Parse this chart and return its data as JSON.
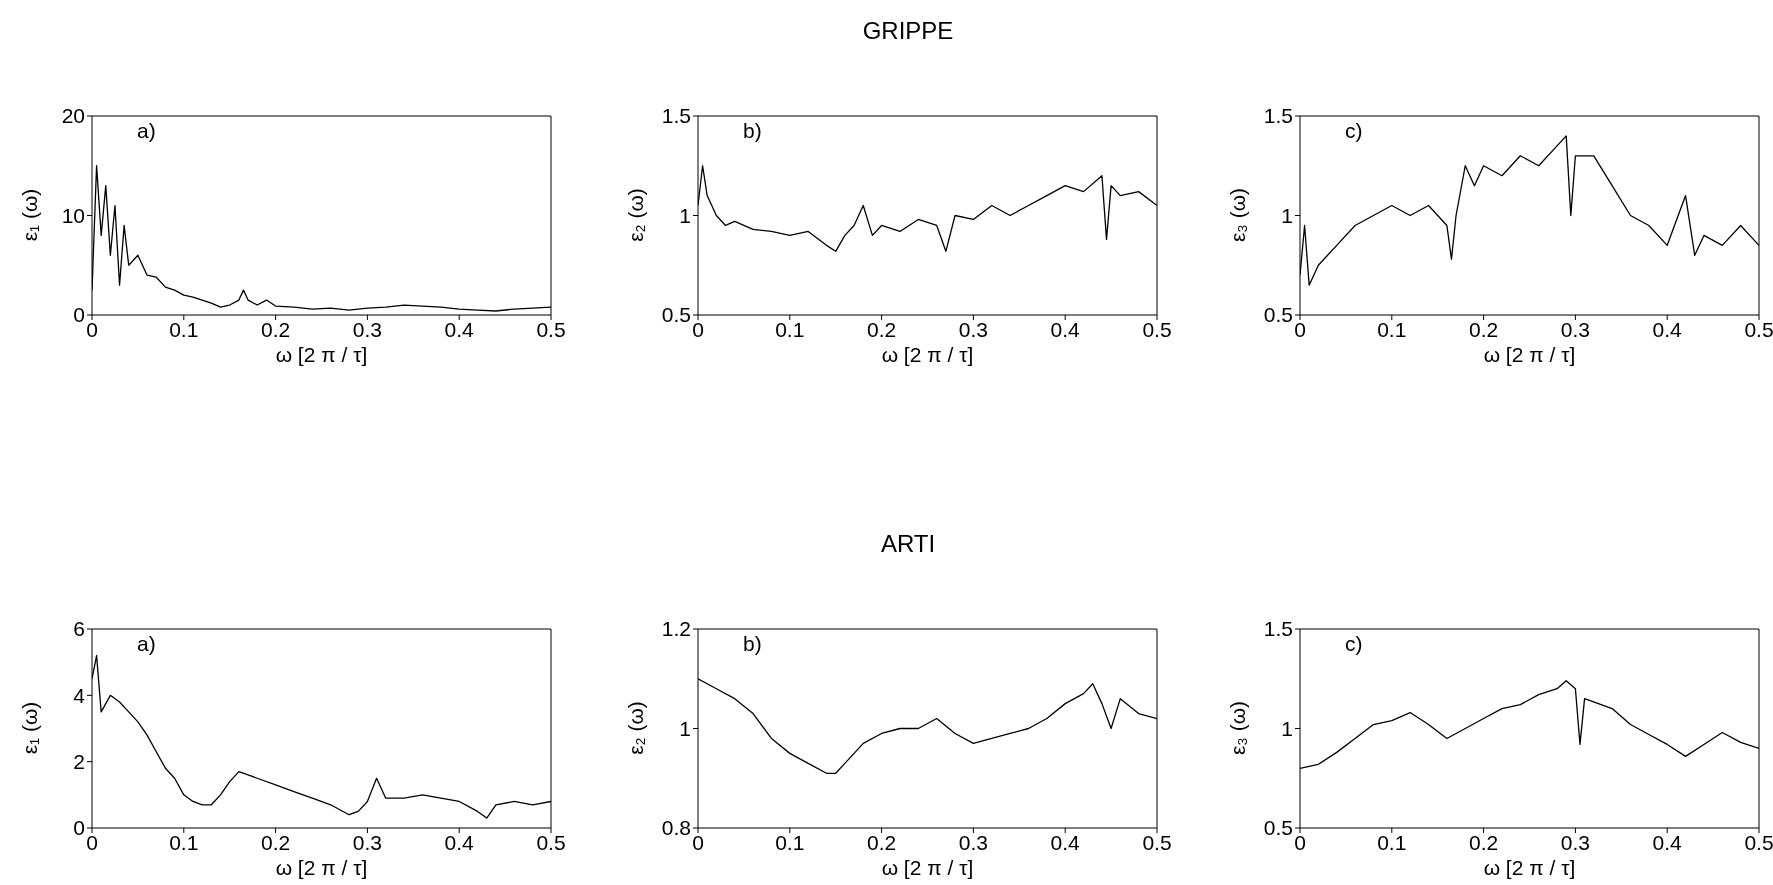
{
  "chart_data": [
    {
      "type": "line",
      "xlabel": "ω [2 π / τ]",
      "ylabel": "ε₁ (ω)",
      "annotations": [
        "a)"
      ],
      "xlim": [
        0,
        0.5
      ],
      "xticks": [
        0,
        0.1,
        0.2,
        0.3,
        0.4,
        0.5
      ],
      "ylim": [
        0,
        20
      ],
      "yticks": [
        0,
        10,
        20
      ],
      "color": "#000000",
      "x": [
        0,
        0.005,
        0.01,
        0.015,
        0.02,
        0.025,
        0.03,
        0.035,
        0.04,
        0.05,
        0.06,
        0.07,
        0.08,
        0.09,
        0.1,
        0.11,
        0.12,
        0.13,
        0.14,
        0.15,
        0.16,
        0.165,
        0.17,
        0.18,
        0.19,
        0.2,
        0.22,
        0.24,
        0.26,
        0.28,
        0.3,
        0.32,
        0.34,
        0.36,
        0.38,
        0.4,
        0.42,
        0.44,
        0.46,
        0.48,
        0.5
      ],
      "values": [
        2.5,
        15,
        8,
        13,
        6,
        11,
        3,
        9,
        5,
        6,
        4,
        3.8,
        2.8,
        2.5,
        2,
        1.8,
        1.5,
        1.2,
        0.8,
        1,
        1.5,
        2.5,
        1.5,
        1,
        1.5,
        0.9,
        0.8,
        0.6,
        0.7,
        0.5,
        0.7,
        0.8,
        1,
        0.9,
        0.8,
        0.6,
        0.5,
        0.4,
        0.6,
        0.7,
        0.8
      ]
    },
    {
      "type": "line",
      "title": "GRIPPE",
      "xlabel": "ω [2 π / τ]",
      "ylabel": "ε₂ (ω)",
      "annotations": [
        "b)"
      ],
      "xlim": [
        0,
        0.5
      ],
      "xticks": [
        0,
        0.1,
        0.2,
        0.3,
        0.4,
        0.5
      ],
      "ylim": [
        0.5,
        1.5
      ],
      "yticks": [
        0.5,
        1,
        1.5
      ],
      "color": "#000000",
      "x": [
        0,
        0.005,
        0.01,
        0.02,
        0.03,
        0.04,
        0.05,
        0.06,
        0.08,
        0.1,
        0.12,
        0.14,
        0.15,
        0.16,
        0.17,
        0.18,
        0.19,
        0.2,
        0.22,
        0.24,
        0.26,
        0.27,
        0.28,
        0.3,
        0.32,
        0.34,
        0.36,
        0.38,
        0.4,
        0.42,
        0.44,
        0.445,
        0.45,
        0.46,
        0.48,
        0.5
      ],
      "values": [
        1.05,
        1.25,
        1.1,
        1,
        0.95,
        0.97,
        0.95,
        0.93,
        0.92,
        0.9,
        0.92,
        0.85,
        0.82,
        0.9,
        0.95,
        1.05,
        0.9,
        0.95,
        0.92,
        0.98,
        0.95,
        0.82,
        1,
        0.98,
        1.05,
        1,
        1.05,
        1.1,
        1.15,
        1.12,
        1.2,
        0.88,
        1.15,
        1.1,
        1.12,
        1.05
      ]
    },
    {
      "type": "line",
      "xlabel": "ω [2 π / τ]",
      "ylabel": "ε₃ (ω)",
      "annotations": [
        "c)"
      ],
      "xlim": [
        0,
        0.5
      ],
      "xticks": [
        0,
        0.1,
        0.2,
        0.3,
        0.4,
        0.5
      ],
      "ylim": [
        0.5,
        1.5
      ],
      "yticks": [
        0.5,
        1,
        1.5
      ],
      "color": "#000000",
      "x": [
        0,
        0.005,
        0.01,
        0.02,
        0.03,
        0.04,
        0.06,
        0.08,
        0.1,
        0.12,
        0.14,
        0.16,
        0.165,
        0.17,
        0.18,
        0.19,
        0.2,
        0.22,
        0.24,
        0.26,
        0.28,
        0.29,
        0.295,
        0.3,
        0.32,
        0.34,
        0.36,
        0.38,
        0.4,
        0.42,
        0.43,
        0.44,
        0.46,
        0.48,
        0.5
      ],
      "values": [
        0.7,
        0.95,
        0.65,
        0.75,
        0.8,
        0.85,
        0.95,
        1,
        1.05,
        1,
        1.05,
        0.95,
        0.78,
        1,
        1.25,
        1.15,
        1.25,
        1.2,
        1.3,
        1.25,
        1.35,
        1.4,
        1,
        1.3,
        1.3,
        1.15,
        1,
        0.95,
        0.85,
        1.1,
        0.8,
        0.9,
        0.85,
        0.95,
        0.85
      ]
    },
    {
      "type": "line",
      "xlabel": "ω [2 π / τ]",
      "ylabel": "ε₁ (ω)",
      "annotations": [
        "a)"
      ],
      "xlim": [
        0,
        0.5
      ],
      "xticks": [
        0,
        0.1,
        0.2,
        0.3,
        0.4,
        0.5
      ],
      "ylim": [
        0,
        6
      ],
      "yticks": [
        0,
        2,
        4,
        6
      ],
      "color": "#000000",
      "x": [
        0,
        0.005,
        0.01,
        0.02,
        0.03,
        0.04,
        0.05,
        0.06,
        0.07,
        0.08,
        0.09,
        0.1,
        0.11,
        0.12,
        0.13,
        0.14,
        0.15,
        0.16,
        0.17,
        0.18,
        0.2,
        0.22,
        0.24,
        0.26,
        0.28,
        0.29,
        0.3,
        0.31,
        0.32,
        0.34,
        0.36,
        0.38,
        0.4,
        0.42,
        0.43,
        0.44,
        0.46,
        0.48,
        0.5
      ],
      "values": [
        4.5,
        5.2,
        3.5,
        4,
        3.8,
        3.5,
        3.2,
        2.8,
        2.3,
        1.8,
        1.5,
        1,
        0.8,
        0.7,
        0.7,
        1,
        1.4,
        1.7,
        1.6,
        1.5,
        1.3,
        1.1,
        0.9,
        0.7,
        0.4,
        0.5,
        0.8,
        1.5,
        0.9,
        0.9,
        1,
        0.9,
        0.8,
        0.5,
        0.3,
        0.7,
        0.8,
        0.7,
        0.8
      ]
    },
    {
      "type": "line",
      "title": "ARTI",
      "xlabel": "ω [2 π / τ]",
      "ylabel": "ε₂ (ω)",
      "annotations": [
        "b)"
      ],
      "xlim": [
        0,
        0.5
      ],
      "xticks": [
        0,
        0.1,
        0.2,
        0.3,
        0.4,
        0.5
      ],
      "ylim": [
        0.8,
        1.2
      ],
      "yticks": [
        0.8,
        1,
        1.2
      ],
      "color": "#000000",
      "x": [
        0,
        0.02,
        0.04,
        0.06,
        0.08,
        0.1,
        0.12,
        0.14,
        0.15,
        0.16,
        0.18,
        0.2,
        0.22,
        0.24,
        0.26,
        0.28,
        0.3,
        0.32,
        0.34,
        0.36,
        0.38,
        0.4,
        0.42,
        0.43,
        0.44,
        0.45,
        0.46,
        0.48,
        0.5
      ],
      "values": [
        1.1,
        1.08,
        1.06,
        1.03,
        0.98,
        0.95,
        0.93,
        0.91,
        0.91,
        0.93,
        0.97,
        0.99,
        1,
        1,
        1.02,
        0.99,
        0.97,
        0.98,
        0.99,
        1,
        1.02,
        1.05,
        1.07,
        1.09,
        1.05,
        1,
        1.06,
        1.03,
        1.02
      ]
    },
    {
      "type": "line",
      "xlabel": "ω [2 π / τ]",
      "ylabel": "ε₃ (ω)",
      "annotations": [
        "c)"
      ],
      "xlim": [
        0,
        0.5
      ],
      "xticks": [
        0,
        0.1,
        0.2,
        0.3,
        0.4,
        0.5
      ],
      "ylim": [
        0.5,
        1.5
      ],
      "yticks": [
        0.5,
        1,
        1.5
      ],
      "color": "#000000",
      "x": [
        0,
        0.02,
        0.04,
        0.06,
        0.08,
        0.1,
        0.12,
        0.14,
        0.16,
        0.18,
        0.2,
        0.22,
        0.24,
        0.26,
        0.28,
        0.29,
        0.3,
        0.305,
        0.31,
        0.34,
        0.36,
        0.38,
        0.4,
        0.42,
        0.44,
        0.46,
        0.48,
        0.5
      ],
      "values": [
        0.8,
        0.82,
        0.88,
        0.95,
        1.02,
        1.04,
        1.08,
        1.02,
        0.95,
        1,
        1.05,
        1.1,
        1.12,
        1.17,
        1.2,
        1.24,
        1.2,
        0.92,
        1.15,
        1.1,
        1.02,
        0.97,
        0.92,
        0.86,
        0.92,
        0.98,
        0.93,
        0.9
      ]
    }
  ]
}
